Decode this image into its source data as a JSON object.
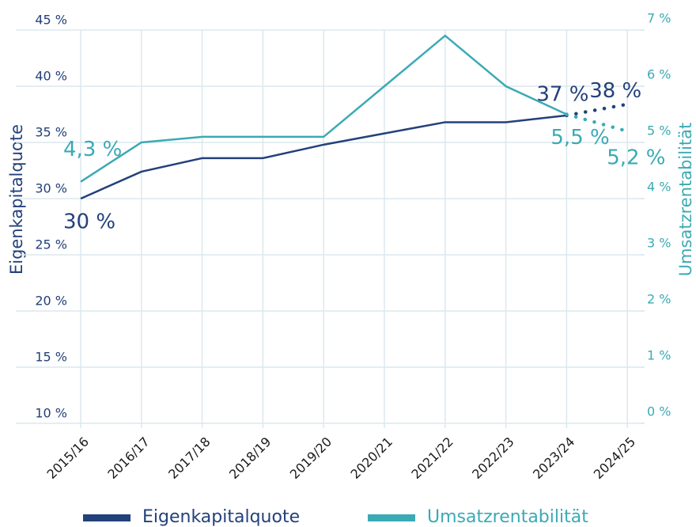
{
  "chart_data": {
    "type": "line",
    "categories": [
      "2015/16",
      "2016/17",
      "2017/18",
      "2018/19",
      "2019/20",
      "2020/21",
      "2021/22",
      "2022/23",
      "2023/24",
      "2024/25"
    ],
    "series": [
      {
        "name": "Eigenkapitalquote",
        "color": "#23417a",
        "axis": "y",
        "values": [
          30,
          32.4,
          33.6,
          33.6,
          34.8,
          35.8,
          36.8,
          36.8,
          37.4,
          38.4
        ],
        "value_labels": [
          "30 %",
          null,
          null,
          null,
          null,
          null,
          null,
          null,
          "37 %",
          "38 %"
        ]
      },
      {
        "name": "Umsatzrentabilität",
        "color": "#3aaab5",
        "axis": "y2",
        "values": [
          4.3,
          5.0,
          5.1,
          5.1,
          5.1,
          6.0,
          6.9,
          6.0,
          5.5,
          5.2
        ],
        "value_labels": [
          "4,3 %",
          null,
          null,
          null,
          null,
          null,
          null,
          null,
          "5,5 %",
          "5,2 %"
        ]
      }
    ],
    "ylabel": "Eigenkapitalquote",
    "y2label": "Umsatzrentabilität",
    "ylim": [
      10,
      45
    ],
    "yticks": [
      {
        "value": 10,
        "label": "10 %"
      },
      {
        "value": 15,
        "label": "15 %"
      },
      {
        "value": 20,
        "label": "20 %"
      },
      {
        "value": 25,
        "label": "25 %"
      },
      {
        "value": 30,
        "label": "30 %"
      },
      {
        "value": 35,
        "label": "35 %"
      },
      {
        "value": 40,
        "label": "40 %"
      },
      {
        "value": 45,
        "label": "45 %"
      }
    ],
    "y2lim": [
      0,
      7
    ],
    "y2ticks": [
      {
        "value": 0,
        "label": "0 %"
      },
      {
        "value": 1,
        "label": "1 %"
      },
      {
        "value": 2,
        "label": "2 %"
      },
      {
        "value": 3,
        "label": "3 %"
      },
      {
        "value": 4,
        "label": "4 %"
      },
      {
        "value": 5,
        "label": "5 %"
      },
      {
        "value": 6,
        "label": "6 %"
      },
      {
        "value": 7,
        "label": "7 %"
      }
    ],
    "grid": true,
    "legend": "bottom"
  }
}
